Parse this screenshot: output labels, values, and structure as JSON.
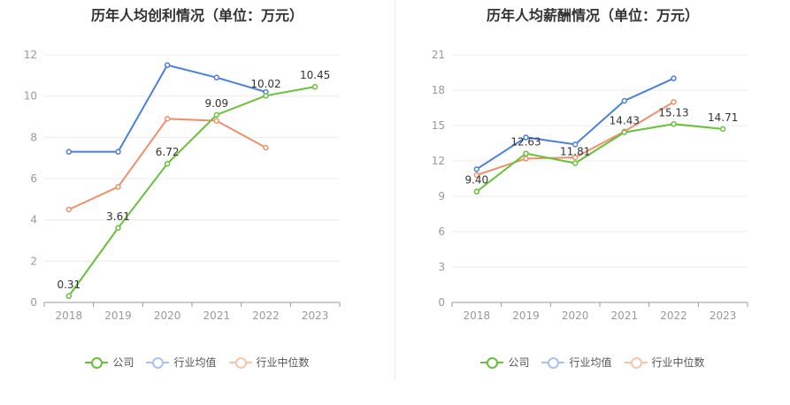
{
  "chart_data": [
    {
      "type": "line",
      "title": "历年人均创利情况（单位：万元）",
      "categories": [
        "2018",
        "2019",
        "2020",
        "2021",
        "2022",
        "2023"
      ],
      "ylim": [
        0,
        12
      ],
      "yticks": [
        0,
        2,
        4,
        6,
        8,
        10,
        12
      ],
      "grid": true,
      "legend_position": "bottom",
      "series": [
        {
          "name": "公司",
          "color": "#67c23a",
          "values": [
            0.31,
            3.61,
            6.72,
            9.09,
            10.02,
            10.45
          ],
          "labels": [
            "0.31",
            "3.61",
            "6.72",
            "9.09",
            "10.02",
            "10.45"
          ]
        },
        {
          "name": "行业均值",
          "color": "#4b7fdc",
          "values": [
            7.3,
            7.3,
            11.5,
            10.9,
            10.2,
            null
          ]
        },
        {
          "name": "行业中位数",
          "color": "#f0906a",
          "values": [
            4.5,
            5.6,
            8.9,
            8.8,
            7.5,
            null
          ]
        }
      ]
    },
    {
      "type": "line",
      "title": "历年人均薪酬情况（单位：万元）",
      "categories": [
        "2018",
        "2019",
        "2020",
        "2021",
        "2022",
        "2023"
      ],
      "ylim": [
        0,
        21
      ],
      "yticks": [
        0,
        3,
        6,
        9,
        12,
        15,
        18,
        21
      ],
      "grid": true,
      "legend_position": "bottom",
      "series": [
        {
          "name": "公司",
          "color": "#67c23a",
          "values": [
            9.4,
            12.63,
            11.81,
            14.43,
            15.13,
            14.71
          ],
          "labels": [
            "9.40",
            "12.63",
            "11.81",
            "14.43",
            "15.13",
            "14.71"
          ]
        },
        {
          "name": "行业均值",
          "color": "#4b7fdc",
          "values": [
            11.3,
            14.0,
            13.4,
            17.1,
            19.0,
            null
          ]
        },
        {
          "name": "行业中位数",
          "color": "#f0906a",
          "values": [
            10.8,
            12.2,
            12.3,
            14.5,
            17.0,
            null
          ]
        }
      ]
    }
  ],
  "legend": {
    "items": [
      {
        "label": "公司",
        "color": "#67c23a"
      },
      {
        "label": "行业均值",
        "color": "#4b7fdc"
      },
      {
        "label": "行业中位数",
        "color": "#f0906a"
      }
    ]
  }
}
